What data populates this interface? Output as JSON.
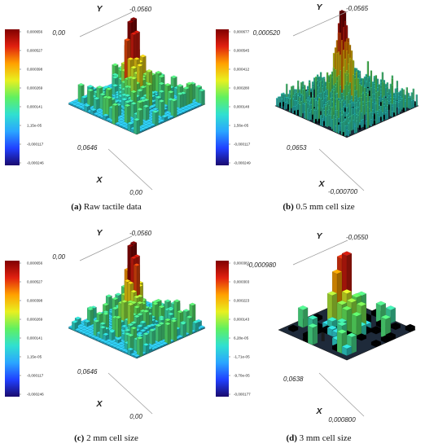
{
  "figure": {
    "panels": [
      {
        "id": "a",
        "caption_tag": "(a)",
        "caption_text": "Raw tactile data",
        "colorbar_ticks": [
          "0,000656",
          "0,000527",
          "0,000398",
          "0,000269",
          "0,000141",
          "1,15e-05",
          "-0,000117",
          "-0,000246"
        ],
        "axis_y_letter": "Y",
        "axis_y_start": "0,00",
        "axis_y_end": "-0,0560",
        "axis_x_letter": "X",
        "axis_x_start": "0,0646",
        "axis_x_end": "0,00"
      },
      {
        "id": "b",
        "caption_tag": "(b)",
        "caption_text": "0.5 mm cell size",
        "colorbar_ticks": [
          "0,000677",
          "0,000545",
          "0,000412",
          "0,000280",
          "0,000148",
          "1,56e-05",
          "-0,000117",
          "-0,000249"
        ],
        "axis_y_letter": "Y",
        "axis_y_start": "0,000520",
        "axis_y_end": "-0,0565",
        "axis_x_letter": "X",
        "axis_x_start": "0,0653",
        "axis_x_end": "-0,000700"
      },
      {
        "id": "c",
        "caption_tag": "(c)",
        "caption_text": "2 mm cell size",
        "colorbar_ticks": [
          "0,000656",
          "0,000527",
          "0,000398",
          "0,000269",
          "0,000141",
          "1,15e-05",
          "-0,000117",
          "-0,000246"
        ],
        "axis_y_letter": "Y",
        "axis_y_start": "0,00",
        "axis_y_end": "-0,0560",
        "axis_x_letter": "X",
        "axis_x_start": "0,0646",
        "axis_x_end": "0,00"
      },
      {
        "id": "d",
        "caption_tag": "(d)",
        "caption_text": "3 mm cell size",
        "colorbar_ticks": [
          "0,000382",
          "0,000303",
          "0,000223",
          "0,000143",
          "6,28e-05",
          "-1,71e-05",
          "-9,70e-05",
          "-0,000177"
        ],
        "axis_y_letter": "Y",
        "axis_y_start": "-0,000980",
        "axis_y_end": "-0,0550",
        "axis_x_letter": "X",
        "axis_x_start": "0,0638",
        "axis_x_end": "0,000800"
      }
    ]
  },
  "chart_data": [
    {
      "type": "heatmap",
      "panel": "a",
      "title": "Raw tactile data",
      "x_range": [
        0.0646,
        0.0
      ],
      "y_range": [
        0.0,
        -0.056
      ],
      "color_range": [
        -0.000246,
        0.000656
      ],
      "colormap": [
        "#1a0a6e",
        "#2040ff",
        "#2aa6ff",
        "#30e0d0",
        "#60f060",
        "#e8f020",
        "#ffa000",
        "#e02010",
        "#800000"
      ]
    },
    {
      "type": "heatmap",
      "panel": "b",
      "title": "0.5 mm cell size",
      "x_range": [
        0.0653,
        -0.0007
      ],
      "y_range": [
        0.00052,
        -0.0565
      ],
      "color_range": [
        -0.000249,
        0.000677
      ],
      "colormap": [
        "#1a0a6e",
        "#2040ff",
        "#2aa6ff",
        "#30e0d0",
        "#60f060",
        "#e8f020",
        "#ffa000",
        "#e02010",
        "#800000"
      ]
    },
    {
      "type": "heatmap",
      "panel": "c",
      "title": "2 mm cell size",
      "x_range": [
        0.0646,
        0.0
      ],
      "y_range": [
        0.0,
        -0.056
      ],
      "color_range": [
        -0.000246,
        0.000656
      ],
      "colormap": [
        "#1a0a6e",
        "#2040ff",
        "#2aa6ff",
        "#30e0d0",
        "#60f060",
        "#e8f020",
        "#ffa000",
        "#e02010",
        "#800000"
      ]
    },
    {
      "type": "heatmap",
      "panel": "d",
      "title": "3 mm cell size",
      "x_range": [
        0.0638,
        0.0008
      ],
      "y_range": [
        -0.00098,
        -0.055
      ],
      "color_range": [
        -0.000177,
        0.000382
      ],
      "colormap": [
        "#1a0a6e",
        "#2040ff",
        "#2aa6ff",
        "#30e0d0",
        "#60f060",
        "#e8f020",
        "#ffa000",
        "#e02010",
        "#800000"
      ]
    }
  ]
}
